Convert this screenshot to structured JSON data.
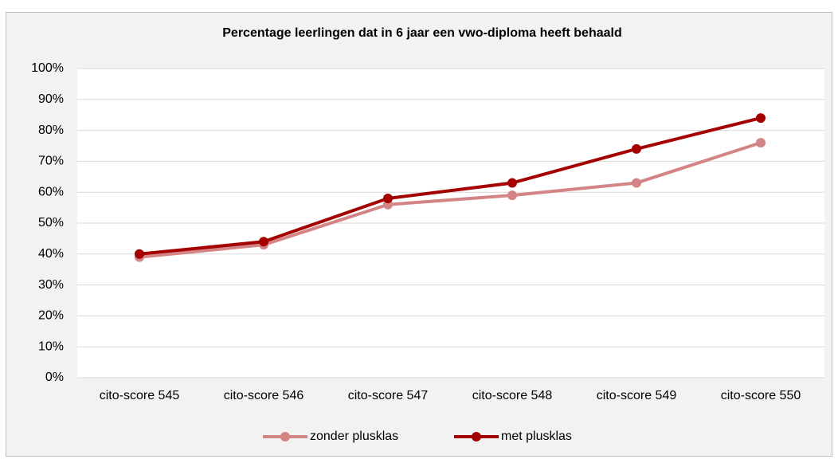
{
  "chart_data": {
    "type": "line",
    "title": "Percentage leerlingen dat in 6 jaar een vwo-diploma heeft behaald",
    "categories": [
      "cito-score 545",
      "cito-score 546",
      "cito-score 547",
      "cito-score 548",
      "cito-score 549",
      "cito-score 550"
    ],
    "series": [
      {
        "name": "zonder plusklas",
        "color": "#d48484",
        "values": [
          39,
          43,
          56,
          59,
          63,
          76
        ]
      },
      {
        "name": "met plusklas",
        "color": "#a50000",
        "values": [
          40,
          44,
          58,
          63,
          74,
          84
        ]
      }
    ],
    "ylim": [
      0,
      100
    ],
    "yticks": [
      {
        "value": 0,
        "label": "0%"
      },
      {
        "value": 10,
        "label": "10%"
      },
      {
        "value": 20,
        "label": "20%"
      },
      {
        "value": 30,
        "label": "30%"
      },
      {
        "value": 40,
        "label": "40%"
      },
      {
        "value": 50,
        "label": "50%"
      },
      {
        "value": 60,
        "label": "60%"
      },
      {
        "value": 70,
        "label": "70%"
      },
      {
        "value": 80,
        "label": "80%"
      },
      {
        "value": 90,
        "label": "90%"
      },
      {
        "value": 100,
        "label": "100%"
      }
    ],
    "grid": true,
    "legend": "bottom"
  }
}
